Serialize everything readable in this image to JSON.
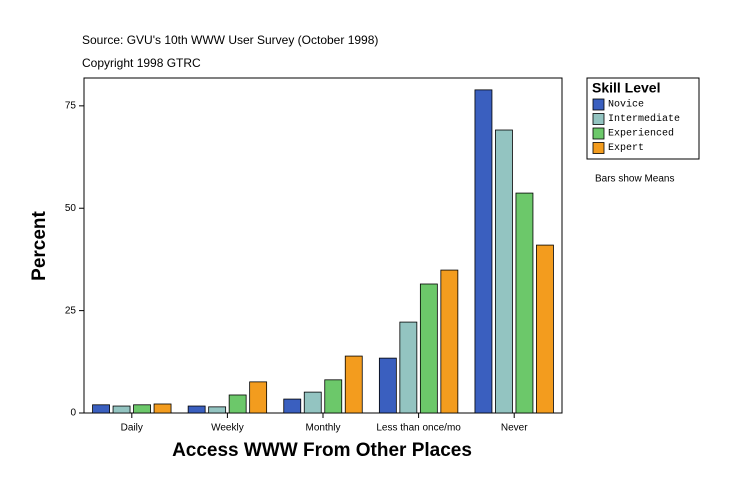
{
  "chart_data": {
    "type": "bar",
    "title": "Source: GVU's 10th WWW User Survey (October 1998)",
    "subtitle": "Copyright 1998 GTRC",
    "x_label": "Access WWW From Other Places",
    "y_label": "Percent",
    "legend_title": "Skill Level",
    "annotation": "Bars show Means",
    "categories": [
      "Daily",
      "Weekly",
      "Monthly",
      "Less than once/mo",
      "Never"
    ],
    "series": [
      {
        "name": "Novice",
        "color": "#3a5fbf",
        "values": [
          2.0,
          1.7,
          3.4,
          13.4,
          78.9
        ]
      },
      {
        "name": "Intermediate",
        "color": "#93c4c1",
        "values": [
          1.7,
          1.5,
          5.1,
          22.2,
          69.1
        ]
      },
      {
        "name": "Experienced",
        "color": "#6cc86a",
        "values": [
          2.0,
          4.4,
          8.1,
          31.5,
          53.7
        ]
      },
      {
        "name": "Expert",
        "color": "#f39c1e",
        "values": [
          2.2,
          7.6,
          13.9,
          34.9,
          41.0
        ]
      }
    ],
    "ylim": [
      0,
      81.8
    ],
    "yticks": [
      0,
      25,
      50,
      75
    ]
  }
}
